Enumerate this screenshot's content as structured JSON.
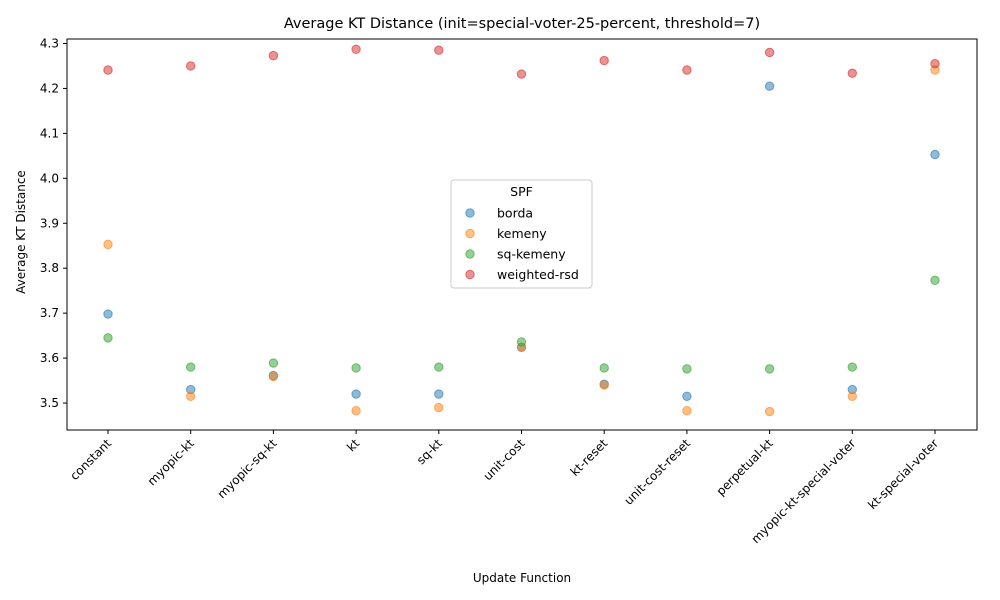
{
  "chart_data": {
    "type": "scatter",
    "title": "Average KT Distance (init=special-voter-25-percent, threshold=7)",
    "xlabel": "Update Function",
    "ylabel": "Average KT Distance",
    "categories": [
      "constant",
      "myopic-kt",
      "myopic-sq-kt",
      "kt",
      "sq-kt",
      "unit-cost",
      "kt-reset",
      "unit-cost-reset",
      "perpetual-kt",
      "myopic-kt-special-voter",
      "kt-special-voter"
    ],
    "ylim": [
      3.44,
      4.31
    ],
    "yticks": [
      "3.5",
      "3.6",
      "3.7",
      "3.8",
      "3.9",
      "4.0",
      "4.1",
      "4.2",
      "4.3"
    ],
    "legend": {
      "title": "SPF",
      "placement": "center-right"
    },
    "series": [
      {
        "name": "borda",
        "color": "#1f77b4",
        "values": [
          3.698,
          3.53,
          3.561,
          3.52,
          3.52,
          3.624,
          3.542,
          3.515,
          4.205,
          3.53,
          4.053
        ]
      },
      {
        "name": "kemeny",
        "color": "#ff7f0e",
        "values": [
          3.853,
          3.515,
          3.559,
          3.483,
          3.49,
          3.624,
          3.54,
          3.483,
          3.481,
          3.515,
          4.241
        ]
      },
      {
        "name": "sq-kemeny",
        "color": "#2ca02c",
        "values": [
          3.645,
          3.58,
          3.589,
          3.578,
          3.58,
          3.636,
          3.578,
          3.576,
          3.576,
          3.58,
          3.773
        ]
      },
      {
        "name": "weighted-rsd",
        "color": "#d62728",
        "values": [
          4.241,
          4.25,
          4.273,
          4.287,
          4.285,
          4.232,
          4.262,
          4.241,
          4.28,
          4.234,
          4.255
        ]
      }
    ]
  }
}
